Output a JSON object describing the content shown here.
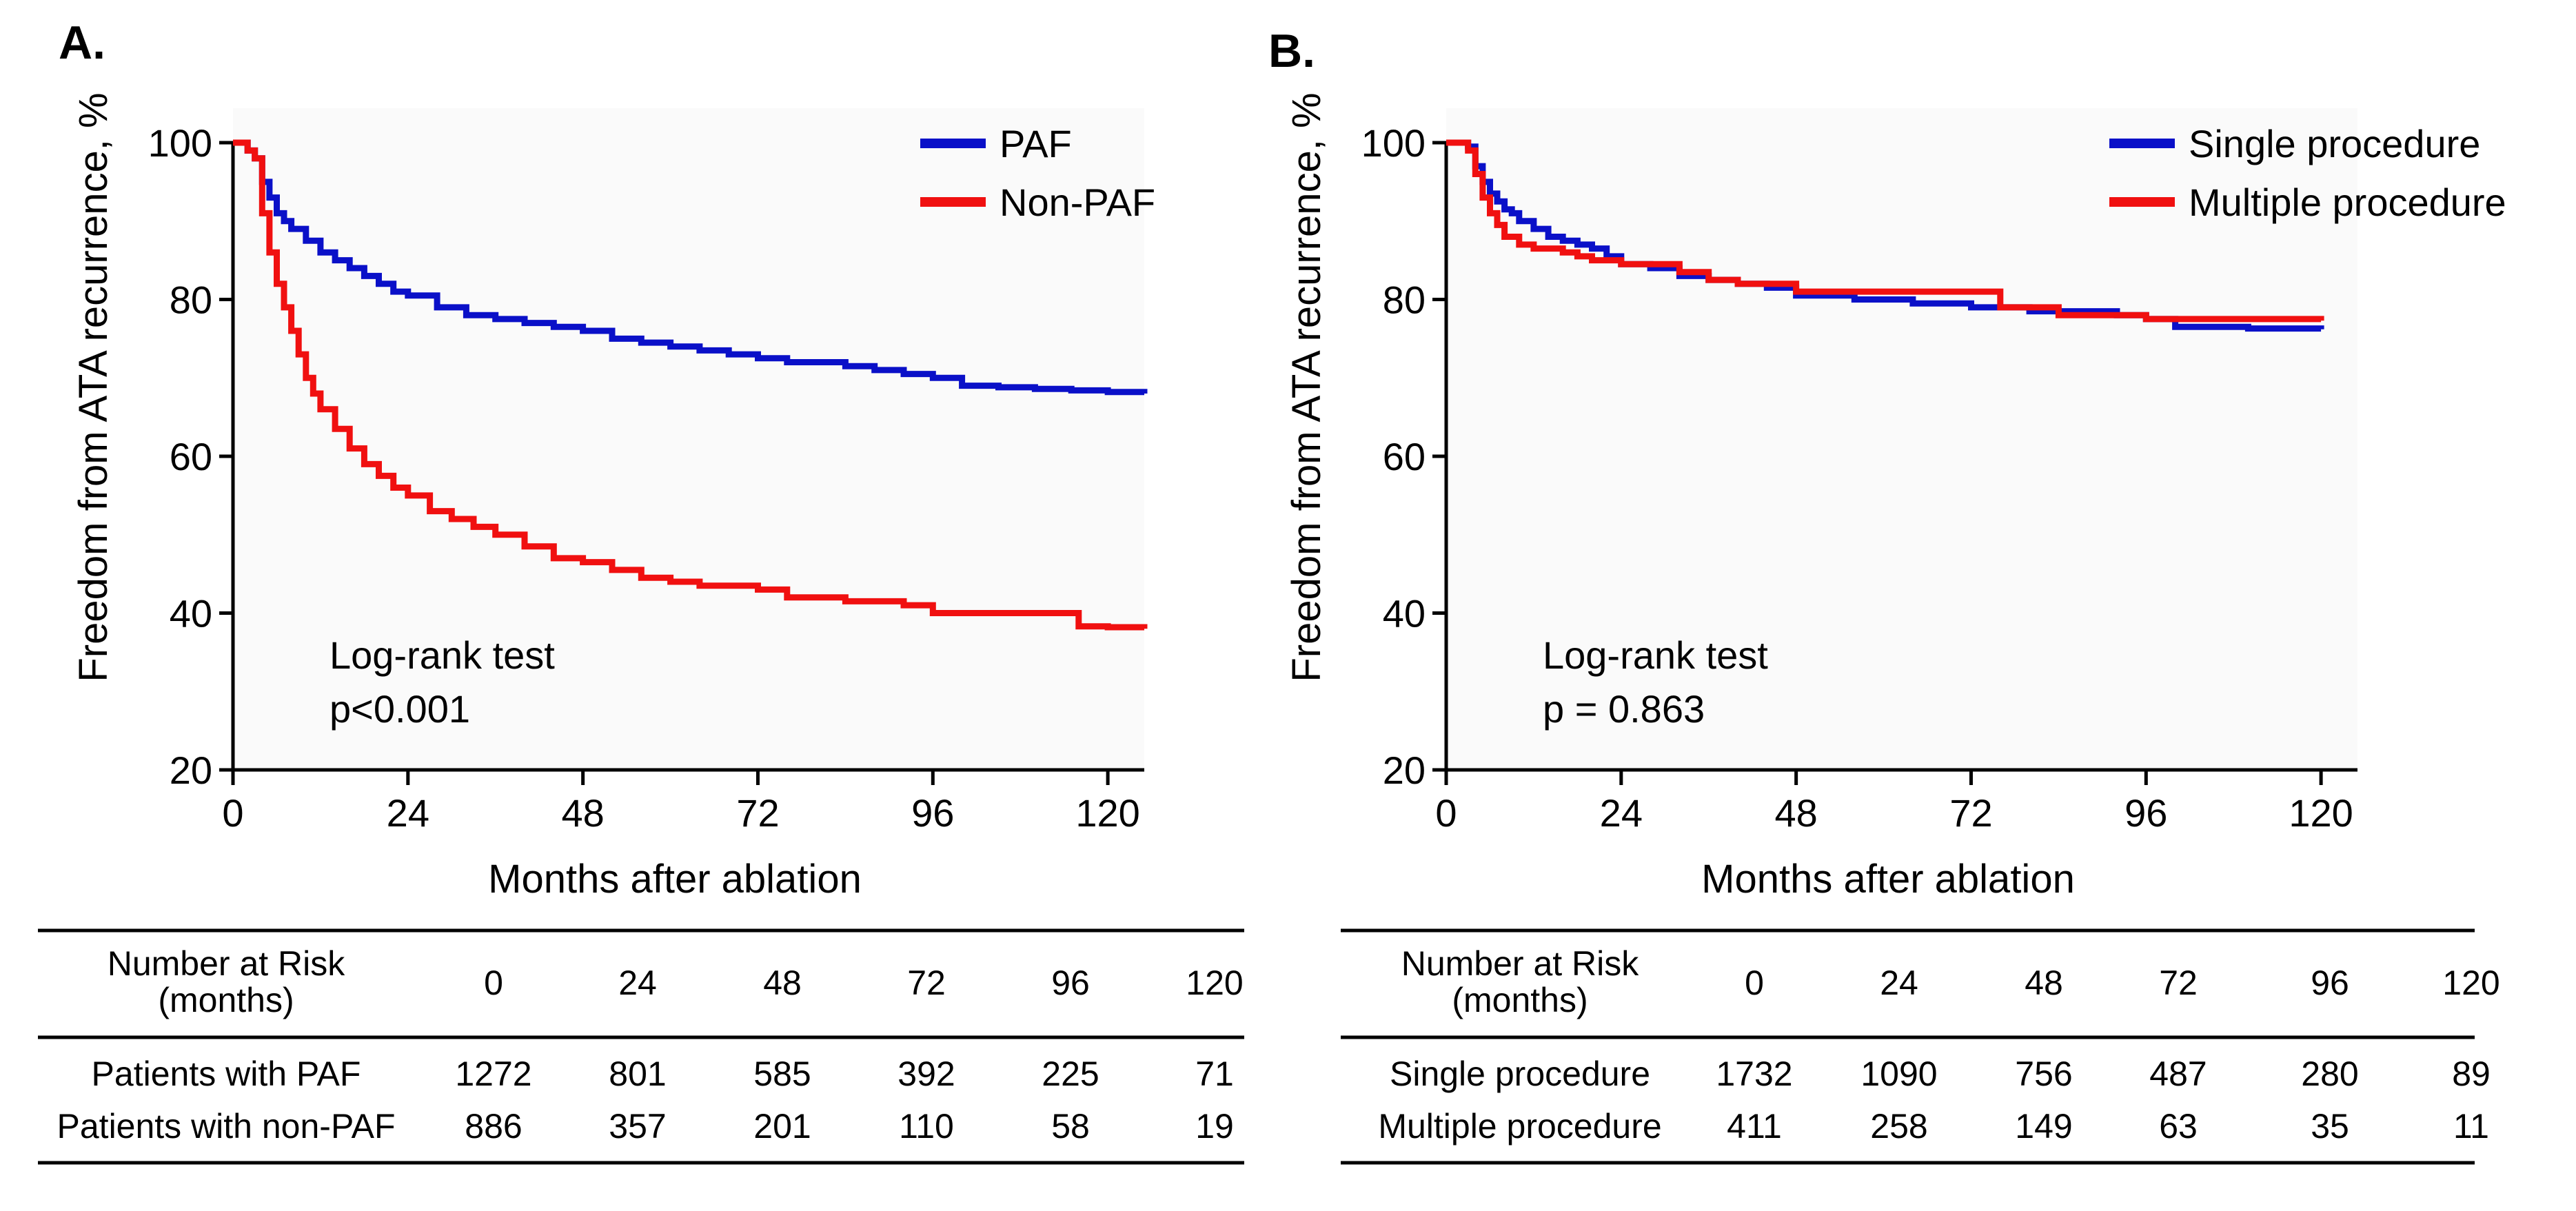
{
  "colors": {
    "series_a": "#0a10c8",
    "series_b": "#f01010",
    "axis": "#000000",
    "plot_bg": "#fafafa"
  },
  "chart_data": [
    {
      "panel": "A.",
      "type": "line",
      "title": "",
      "xlabel": "Months after ablation",
      "ylabel": "Freedom from ATA recurrence, %",
      "xlim": [
        0,
        125
      ],
      "ylim": [
        20,
        100
      ],
      "xticks": [
        0,
        24,
        48,
        72,
        96,
        120
      ],
      "yticks": [
        20,
        40,
        60,
        80,
        100
      ],
      "legend": "top-right",
      "annotation": [
        "Log-rank test",
        "p<0.001"
      ],
      "series": [
        {
          "name": "PAF",
          "x": [
            0,
            2,
            3,
            4,
            5,
            6,
            7,
            8,
            10,
            12,
            14,
            16,
            18,
            20,
            22,
            24,
            28,
            32,
            36,
            40,
            44,
            48,
            52,
            56,
            60,
            64,
            68,
            72,
            76,
            80,
            84,
            88,
            92,
            96,
            100,
            105,
            110,
            115,
            120,
            125
          ],
          "y": [
            100,
            99,
            98,
            95,
            93,
            91,
            90,
            89,
            87.5,
            86,
            85,
            84,
            83,
            82,
            81,
            80.5,
            79,
            78,
            77.5,
            77,
            76.5,
            76,
            75,
            74.5,
            74,
            73.5,
            73,
            72.5,
            72,
            72,
            71.5,
            71,
            70.5,
            70,
            69,
            68.8,
            68.6,
            68.4,
            68.2,
            68
          ]
        },
        {
          "name": "Non-PAF",
          "x": [
            0,
            2,
            3,
            4,
            5,
            6,
            7,
            8,
            9,
            10,
            11,
            12,
            14,
            16,
            18,
            20,
            22,
            24,
            27,
            30,
            33,
            36,
            40,
            44,
            48,
            52,
            56,
            60,
            64,
            68,
            72,
            76,
            80,
            84,
            88,
            92,
            96,
            100,
            104,
            108,
            112,
            116,
            120,
            125
          ],
          "y": [
            100,
            99,
            98,
            91,
            86,
            82,
            79,
            76,
            73,
            70,
            68,
            66,
            63.5,
            61,
            59,
            57.5,
            56,
            55,
            53,
            52,
            51,
            50,
            48.5,
            47,
            46.5,
            45.5,
            44.5,
            44,
            43.5,
            43.5,
            43,
            42,
            42,
            41.5,
            41.5,
            41,
            40,
            40,
            40,
            40,
            40,
            38.3,
            38.2,
            38
          ]
        }
      ]
    },
    {
      "panel": "B.",
      "type": "line",
      "title": "",
      "xlabel": "Months after ablation",
      "ylabel": "Freedom from ATA recurrence, %",
      "xlim": [
        0,
        125
      ],
      "ylim": [
        20,
        100
      ],
      "xticks": [
        0,
        24,
        48,
        72,
        96,
        120
      ],
      "yticks": [
        20,
        40,
        60,
        80,
        100
      ],
      "legend": "top-right",
      "annotation": [
        "Log-rank test",
        "p = 0.863"
      ],
      "series": [
        {
          "name": "Single procedure",
          "x": [
            0,
            3,
            4,
            5,
            6,
            7,
            8,
            9,
            10,
            12,
            14,
            16,
            18,
            20,
            22,
            24,
            28,
            32,
            36,
            40,
            44,
            48,
            56,
            64,
            72,
            80,
            88,
            92,
            96,
            100,
            110,
            120
          ],
          "y": [
            100,
            99.5,
            97,
            95,
            93.5,
            92.5,
            91.5,
            91,
            90,
            89,
            88,
            87.5,
            87,
            86.5,
            85.5,
            84.5,
            84,
            83,
            82.5,
            82,
            81.5,
            80.5,
            80,
            79.5,
            79,
            78.5,
            78.5,
            78,
            77.5,
            76.5,
            76.3,
            76.2
          ]
        },
        {
          "name": "Multiple procedure",
          "x": [
            0,
            3,
            4,
            5,
            6,
            7,
            8,
            10,
            12,
            14,
            16,
            18,
            20,
            24,
            28,
            32,
            36,
            40,
            44,
            48,
            56,
            64,
            72,
            76,
            80,
            84,
            88,
            92,
            96,
            100,
            110,
            120
          ],
          "y": [
            100,
            99,
            96,
            93,
            91,
            89.5,
            88,
            87,
            86.5,
            86.5,
            86,
            85.5,
            85,
            84.5,
            84.5,
            83.5,
            82.5,
            82,
            82,
            81,
            81,
            81,
            81,
            79,
            79,
            78,
            78,
            78,
            77.5,
            77.5,
            77.5,
            77.3
          ]
        }
      ]
    }
  ],
  "risk_tables": [
    {
      "header_label": [
        "Number at Risk",
        "(months)"
      ],
      "months": [
        "0",
        "24",
        "48",
        "72",
        "96",
        "120"
      ],
      "rows": [
        {
          "label": "Patients with PAF",
          "values": [
            "1272",
            "801",
            "585",
            "392",
            "225",
            "71"
          ]
        },
        {
          "label": "Patients with non-PAF",
          "values": [
            "886",
            "357",
            "201",
            "110",
            "58",
            "19"
          ]
        }
      ]
    },
    {
      "header_label": [
        "Number at Risk",
        "(months)"
      ],
      "months": [
        "0",
        "24",
        "48",
        "72",
        "96",
        "120"
      ],
      "rows": [
        {
          "label": "Single procedure",
          "values": [
            "1732",
            "1090",
            "756",
            "487",
            "280",
            "89"
          ]
        },
        {
          "label": "Multiple procedure",
          "values": [
            "411",
            "258",
            "149",
            "63",
            "35",
            "11"
          ]
        }
      ]
    }
  ]
}
